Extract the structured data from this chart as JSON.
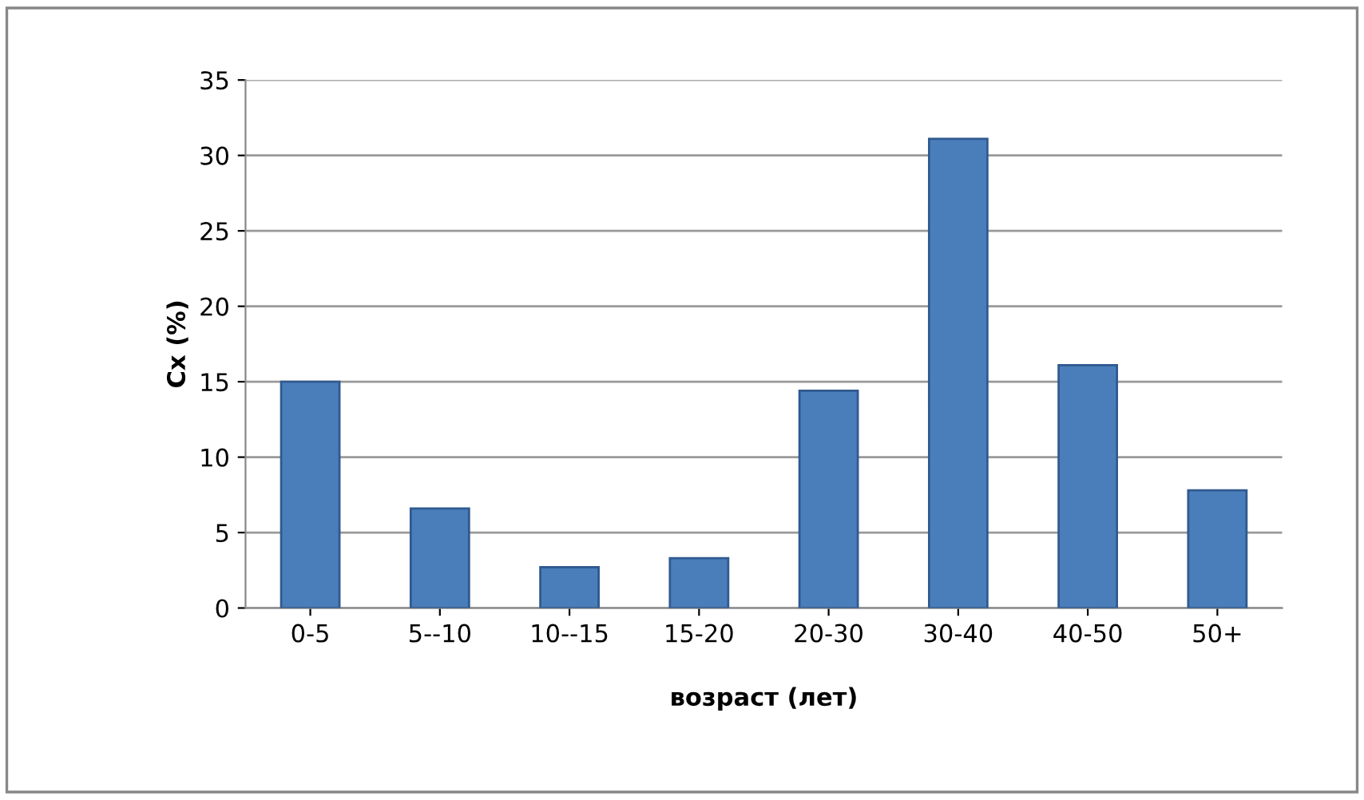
{
  "chart_data": {
    "type": "bar",
    "xlabel": "возраст (лет)",
    "ylabel": "Cx (%)",
    "categories": [
      "0-5",
      "5--10",
      "10--15",
      "15-20",
      "20-30",
      "30-40",
      "40-50",
      "50+"
    ],
    "values": [
      15,
      6.6,
      2.7,
      3.3,
      14.4,
      31.1,
      16.1,
      7.8
    ],
    "color": "#4a7ebb",
    "ylim": [
      0,
      35
    ],
    "yticks": [
      0,
      5,
      10,
      15,
      20,
      25,
      30,
      35
    ],
    "grid": "y"
  }
}
